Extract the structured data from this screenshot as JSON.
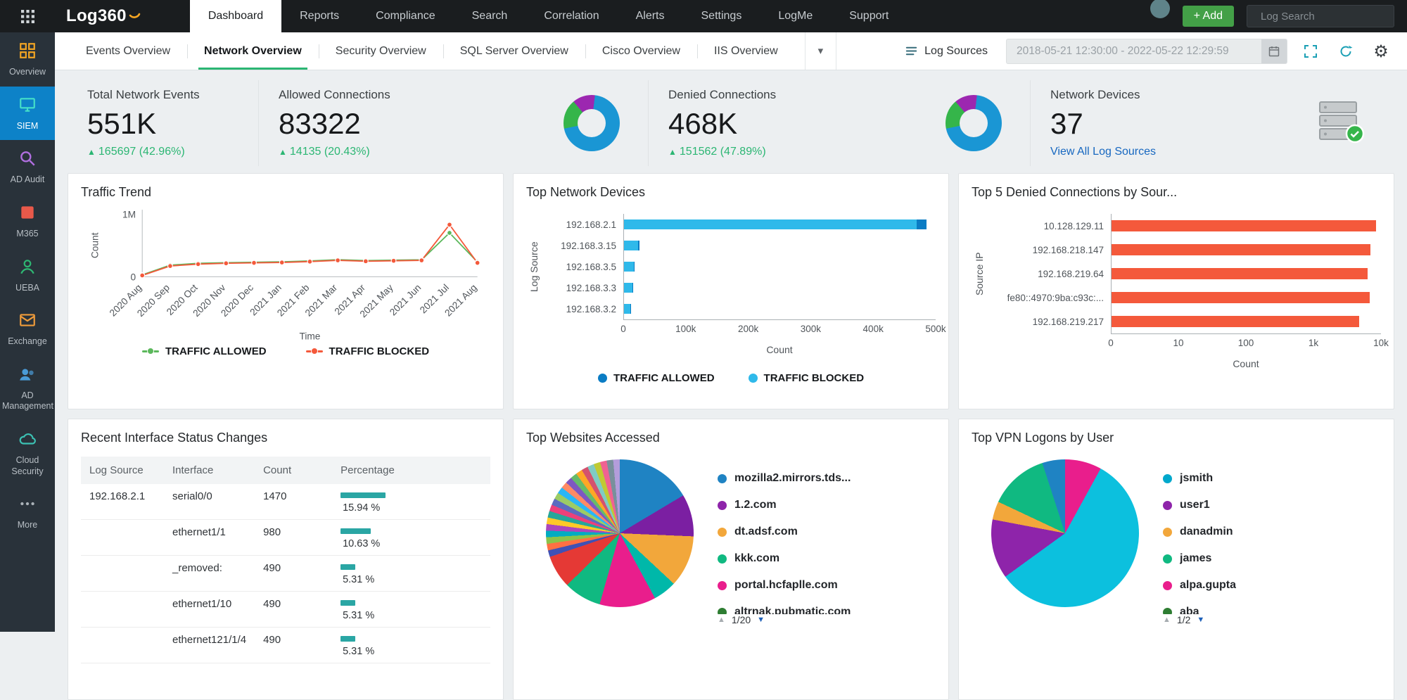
{
  "topbar": {
    "logo": "Log360",
    "nav": [
      {
        "label": "Dashboard",
        "active": true
      },
      {
        "label": "Reports"
      },
      {
        "label": "Compliance"
      },
      {
        "label": "Search"
      },
      {
        "label": "Correlation"
      },
      {
        "label": "Alerts"
      },
      {
        "label": "Settings"
      },
      {
        "label": "LogMe"
      },
      {
        "label": "Support"
      }
    ],
    "add_button": "+ Add",
    "search_placeholder": "Log Search"
  },
  "sidebar": {
    "items": [
      {
        "label": "Overview",
        "icon": "grid-icon",
        "color": "#f5a623"
      },
      {
        "label": "SIEM",
        "icon": "siem-icon",
        "color": "#45e0c8",
        "active": true
      },
      {
        "label": "AD Audit",
        "icon": "audit-icon",
        "color": "#b06fe0"
      },
      {
        "label": "M365",
        "icon": "m365-icon",
        "color": "#e8594a"
      },
      {
        "label": "UEBA",
        "icon": "ueba-icon",
        "color": "#2eb873"
      },
      {
        "label": "Exchange",
        "icon": "exchange-icon",
        "color": "#f09c3a"
      },
      {
        "label": "AD Management",
        "icon": "ad-management-icon",
        "color": "#4a9bd8"
      },
      {
        "label": "Cloud Security",
        "icon": "cloud-security-icon",
        "color": "#3cc2b4"
      },
      {
        "label": "More",
        "icon": "more-icon",
        "color": "#aab2b8"
      }
    ]
  },
  "tabbar": {
    "tabs": [
      {
        "label": "Events Overview"
      },
      {
        "label": "Network Overview",
        "active": true
      },
      {
        "label": "Security Overview"
      },
      {
        "label": "SQL Server Overview"
      },
      {
        "label": "Cisco Overview"
      },
      {
        "label": "IIS Overview"
      }
    ],
    "log_sources_label": "Log Sources",
    "date_range": "2018-05-21 12:30:00 - 2022-05-22 12:29:59"
  },
  "kpis": [
    {
      "label": "Total Network Events",
      "value": "551K",
      "delta": "165697 (42.96%)"
    },
    {
      "label": "Allowed Connections",
      "value": "83322",
      "delta": "14135 (20.43%)",
      "has_donut": true
    },
    {
      "label": "Denied Connections",
      "value": "468K",
      "delta": "151562 (47.89%)",
      "has_donut": true
    },
    {
      "label": "Network Devices",
      "value": "37",
      "link": "View All Log Sources",
      "has_device_icon": true
    }
  ],
  "donut": {
    "slices": [
      {
        "color": "#9c27b0",
        "value": 13
      },
      {
        "color": "#1a96d4",
        "value": 70
      },
      {
        "color": "#35b54a",
        "value": 17
      }
    ]
  },
  "cards": {
    "traffic_trend": {
      "title": "Traffic Trend"
    },
    "top_network_devices": {
      "title": "Top Network Devices"
    },
    "top_denied": {
      "title": "Top 5 Denied Connections by Sour..."
    },
    "interface_changes": {
      "title": "Recent Interface Status Changes"
    },
    "top_websites": {
      "title": "Top Websites Accessed",
      "pager": "1/20"
    },
    "top_vpn": {
      "title": "Top VPN Logons by User",
      "pager": "1/2"
    }
  },
  "chart_data": {
    "traffic_trend": {
      "type": "line",
      "x": [
        "2020 Aug",
        "2020 Sep",
        "2020 Oct",
        "2020 Nov",
        "2020 Dec",
        "2021 Jan",
        "2021 Feb",
        "2021 Mar",
        "2021 Apr",
        "2021 May",
        "2021 Jun",
        "2021 Jul",
        "2021 Aug"
      ],
      "series": [
        {
          "name": "TRAFFIC ALLOWED",
          "color": "#5cb85c",
          "values": [
            30000,
            185000,
            215000,
            225000,
            232000,
            238000,
            252000,
            272000,
            258000,
            265000,
            270000,
            700000,
            235000
          ]
        },
        {
          "name": "TRAFFIC BLOCKED",
          "color": "#f4593b",
          "values": [
            22000,
            172000,
            202000,
            215000,
            222000,
            228000,
            242000,
            262000,
            248000,
            255000,
            262000,
            830000,
            222000
          ]
        }
      ],
      "xlabel": "Time",
      "ylabel": "Count",
      "ylim": [
        0,
        1000000
      ],
      "yticks": [
        "1M",
        "0"
      ]
    },
    "top_network_devices": {
      "type": "bar-horizontal-stacked",
      "categories": [
        "192.168.2.1",
        "192.168.3.15",
        "192.168.3.5",
        "192.168.3.3",
        "192.168.3.2"
      ],
      "series": [
        {
          "name": "TRAFFIC ALLOWED",
          "color": "#0a7cc4",
          "values": [
            15000,
            1500,
            1200,
            1000,
            800
          ]
        },
        {
          "name": "TRAFFIC BLOCKED",
          "color": "#2fb9ea",
          "values": [
            470000,
            23000,
            16000,
            13000,
            10000
          ]
        }
      ],
      "xlabel": "Count",
      "ylabel": "Log Source",
      "xticks": [
        "0",
        "100k",
        "200k",
        "300k",
        "400k",
        "500k"
      ],
      "xmax": 500000
    },
    "top_denied_connections": {
      "type": "bar-horizontal",
      "categories": [
        "10.128.129.11",
        "192.168.218.147",
        "192.168.219.64",
        "fe80::4970:9ba:c93c:...",
        "192.168.219.217"
      ],
      "values": [
        8500,
        7000,
        6300,
        6700,
        4800
      ],
      "color": "#f4593b",
      "xlabel": "Count",
      "ylabel": "Source IP",
      "xticks": [
        "0",
        "10",
        "100",
        "1k",
        "10k"
      ],
      "scale": "log",
      "xmax": 10000
    },
    "interface_table": {
      "type": "table",
      "headers": [
        "Log Source",
        "Interface",
        "Count",
        "Percentage"
      ],
      "bar_color": "#2aa6a4",
      "rows": [
        {
          "log_source": "192.168.2.1",
          "interface": "serial0/0",
          "count": "1470",
          "pct": 15.94,
          "pct_label": "15.94 %"
        },
        {
          "log_source": "",
          "interface": "ethernet1/1",
          "count": "980",
          "pct": 10.63,
          "pct_label": "10.63 %"
        },
        {
          "log_source": "",
          "interface": "_removed:",
          "count": "490",
          "pct": 5.31,
          "pct_label": "5.31 %"
        },
        {
          "log_source": "",
          "interface": "ethernet1/10",
          "count": "490",
          "pct": 5.31,
          "pct_label": "5.31 %"
        },
        {
          "log_source": "",
          "interface": "ethernet121/1/4",
          "count": "490",
          "pct": 5.31,
          "pct_label": "5.31 %"
        }
      ]
    },
    "top_websites": {
      "type": "pie",
      "legend": [
        {
          "label": "mozilla2.mirrors.tds...",
          "color": "#1f83c3"
        },
        {
          "label": "1.2.com",
          "color": "#8e24aa"
        },
        {
          "label": "dt.adsf.com",
          "color": "#f2a73b"
        },
        {
          "label": "kkk.com",
          "color": "#10b981"
        },
        {
          "label": "portal.hcfaplle.com",
          "color": "#e91e8c"
        },
        {
          "label": "altrnak.pubmatic.com",
          "color": "#2e7d32"
        }
      ],
      "slices": [
        {
          "color": "#1f83c3",
          "value": 16
        },
        {
          "color": "#7b1fa2",
          "value": 9
        },
        {
          "color": "#f2a73b",
          "value": 11
        },
        {
          "color": "#00b8a9",
          "value": 5
        },
        {
          "color": "#e91e8c",
          "value": 12
        },
        {
          "color": "#10b981",
          "value": 8
        },
        {
          "color": "#e53935",
          "value": 7
        },
        {
          "color": "#3f51b5",
          "value": 1.4
        },
        {
          "color": "#ff7043",
          "value": 1.4
        },
        {
          "color": "#8bc34a",
          "value": 1.4
        },
        {
          "color": "#00acc1",
          "value": 1.4
        },
        {
          "color": "#ab47bc",
          "value": 1.4
        },
        {
          "color": "#ffca28",
          "value": 1.4
        },
        {
          "color": "#26a69a",
          "value": 1.4
        },
        {
          "color": "#ec407a",
          "value": 1.4
        },
        {
          "color": "#5c6bc0",
          "value": 1.4
        },
        {
          "color": "#9ccc65",
          "value": 1.4
        },
        {
          "color": "#29b6f6",
          "value": 1.4
        },
        {
          "color": "#ff8a65",
          "value": 1.4
        },
        {
          "color": "#7e57c2",
          "value": 1.4
        },
        {
          "color": "#66bb6a",
          "value": 1.4
        },
        {
          "color": "#ffa726",
          "value": 1.4
        },
        {
          "color": "#d4526e",
          "value": 1.4
        },
        {
          "color": "#80cbc4",
          "value": 1.4
        },
        {
          "color": "#c0ca33",
          "value": 1.4
        },
        {
          "color": "#f06292",
          "value": 1.4
        },
        {
          "color": "#78909c",
          "value": 1.4
        },
        {
          "color": "#b39ddb",
          "value": 1.4
        }
      ]
    },
    "top_vpn": {
      "type": "pie",
      "legend": [
        {
          "label": "jsmith",
          "color": "#00a8cc"
        },
        {
          "label": "user1",
          "color": "#8e24aa"
        },
        {
          "label": "danadmin",
          "color": "#f2a73b"
        },
        {
          "label": "james",
          "color": "#10b981"
        },
        {
          "label": "alpa.gupta",
          "color": "#e91e8c"
        },
        {
          "label": "aba",
          "color": "#2e7d32"
        }
      ],
      "slices": [
        {
          "color": "#e91e8c",
          "value": 8
        },
        {
          "color": "#0cc0de",
          "value": 57
        },
        {
          "color": "#8e24aa",
          "value": 13
        },
        {
          "color": "#f2a73b",
          "value": 4
        },
        {
          "color": "#10b981",
          "value": 13
        },
        {
          "color": "#1f83c3",
          "value": 5
        }
      ]
    }
  }
}
